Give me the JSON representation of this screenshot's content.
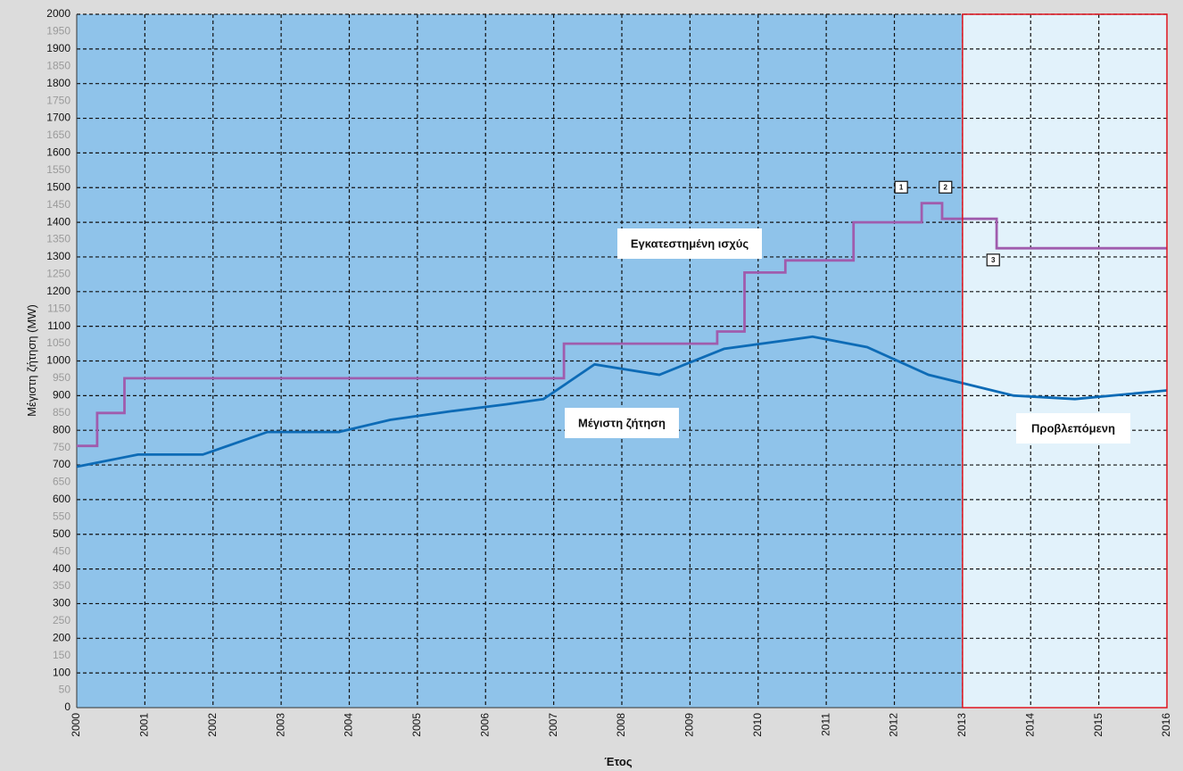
{
  "chart_data": {
    "type": "line",
    "xlabel": "Έτος",
    "ylabel": "Μέγιστη ζήτηση (MW)",
    "xlim": [
      2000,
      2016
    ],
    "ylim": [
      0,
      2000
    ],
    "y_major_step": 100,
    "y_minor_step": 50,
    "x_ticks": [
      "2000",
      "2001",
      "2002",
      "2003",
      "2004",
      "2005",
      "2006",
      "2007",
      "2008",
      "2009",
      "2010",
      "2011",
      "2012",
      "2013",
      "2014",
      "2015",
      "2016"
    ],
    "grid": true,
    "forecast_start": 2013,
    "colors": {
      "plot_background": "#8fc3ea",
      "forecast_background": "#e2f2fb",
      "forecast_border": "#e0141e",
      "installed": "#a05cad",
      "demand": "#0d6bb6",
      "grid": "#111111",
      "page_background": "#dcdcdc"
    },
    "series": [
      {
        "key": "installed",
        "step": true,
        "x": [
          2000,
          2000.3,
          2000.3,
          2000.7,
          2000.7,
          2007.15,
          2007.15,
          2009.4,
          2009.4,
          2009.8,
          2009.8,
          2010.4,
          2010.4,
          2011.4,
          2011.4,
          2012.4,
          2012.4,
          2012.7,
          2012.7,
          2013.5,
          2013.5,
          2016
        ],
        "y": [
          755,
          755,
          850,
          850,
          950,
          950,
          1050,
          1050,
          1085,
          1085,
          1255,
          1255,
          1290,
          1290,
          1400,
          1400,
          1455,
          1455,
          1410,
          1410,
          1325,
          1325
        ]
      },
      {
        "key": "demand",
        "step": false,
        "x": [
          2000,
          2000.9,
          2001.85,
          2002.8,
          2003.85,
          2004.6,
          2005.5,
          2006.3,
          2006.85,
          2007.6,
          2008.55,
          2009.5,
          2010.8,
          2011.6,
          2012.5,
          2013.75,
          2014.65,
          2016
        ],
        "y": [
          695,
          730,
          730,
          795,
          795,
          830,
          855,
          875,
          890,
          990,
          960,
          1035,
          1070,
          1040,
          960,
          900,
          890,
          915
        ]
      }
    ],
    "annotations": {
      "installed_label": "Εγκατεστημένη ισχύς",
      "demand_label": "Μέγιστη ζήτηση",
      "forecast_label": "Προβλεπόμενη",
      "markers": [
        {
          "text": "1",
          "x": 2012.1,
          "y": 1500
        },
        {
          "text": "2",
          "x": 2012.75,
          "y": 1500
        },
        {
          "text": "3",
          "x": 2013.45,
          "y": 1290
        }
      ]
    }
  }
}
